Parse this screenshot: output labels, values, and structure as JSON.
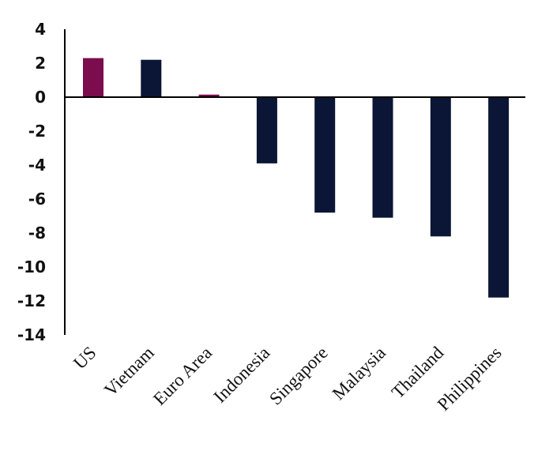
{
  "chart_data": {
    "type": "bar",
    "title": "",
    "xlabel": "",
    "ylabel": "",
    "ylim": [
      -14,
      4
    ],
    "yticks": [
      "4",
      "2",
      "0",
      "-2",
      "-4",
      "-6",
      "-8",
      "-10",
      "-12",
      "-14"
    ],
    "grid": false,
    "legend": "none",
    "categories": [
      "US",
      "Vietnam",
      "Euro Area",
      "Indonesia",
      "Singapore",
      "Malaysia",
      "Thailand",
      "Philippines"
    ],
    "values": [
      2.3,
      2.2,
      0.15,
      -3.9,
      -6.8,
      -7.1,
      -8.2,
      -11.8
    ],
    "bar_colors": [
      "#7b0c4e",
      "#0b1636",
      "#7b0c4e",
      "#0b1636",
      "#0b1636",
      "#0b1636",
      "#0b1636",
      "#0b1636"
    ],
    "axis_color": "#000000",
    "text_color": "#111111"
  }
}
